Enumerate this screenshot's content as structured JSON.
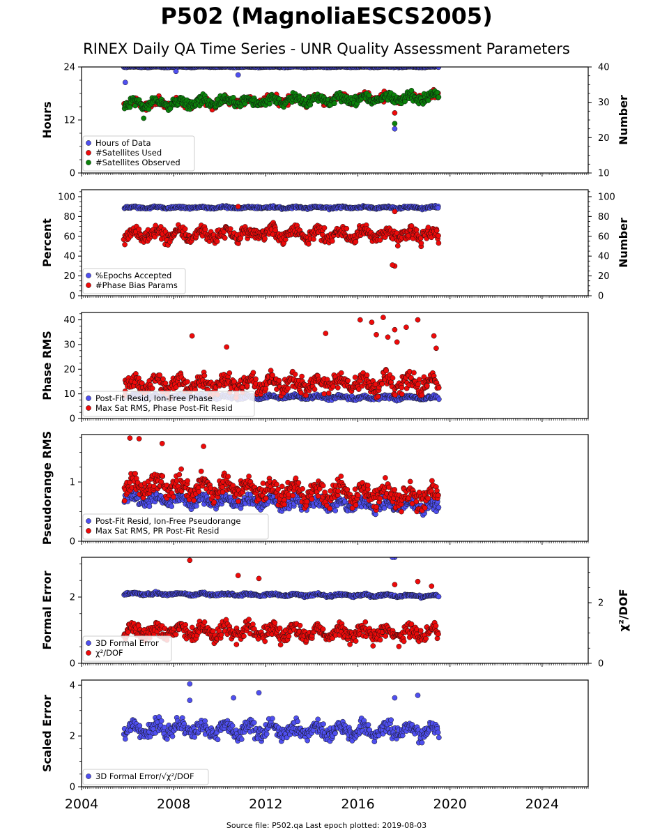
{
  "header": {
    "title": "P502 (MagnoliaESCS2005)",
    "subtitle": "RINEX Daily QA Time Series - UNR Quality Assessment Parameters"
  },
  "footer": {
    "text": "Source file: P502.qa Last epoch plotted: 2019-08-03"
  },
  "colors": {
    "blue": "#4f4ff0",
    "red": "#ee0a0a",
    "green": "#0a820a",
    "dark_band": "#141a4a"
  },
  "chart_data": [
    {
      "type": "scatter",
      "ylabel": "Hours",
      "y2label": "Number",
      "xlim": [
        2004,
        2026
      ],
      "ylim": [
        0,
        24
      ],
      "y2lim": [
        10,
        40
      ],
      "yticks": [
        "0",
        "12",
        "24"
      ],
      "y2ticks": [
        "10",
        "20",
        "30",
        "40"
      ],
      "legend": [
        "Hours of Data",
        "#Satellites Used",
        "#Satellites Observed"
      ],
      "legend_loc": "lower-left",
      "series": [
        {
          "name": "Hours of Data",
          "axis": "left",
          "color": "#4f4ff0",
          "base": 24,
          "spread": 0.1,
          "trend": 0,
          "points": [
            [
              2005.9,
              20.5
            ],
            [
              2008.1,
              23
            ],
            [
              2010.8,
              22.2
            ],
            [
              2017.6,
              10
            ]
          ]
        },
        {
          "name": "#Satellites Used",
          "axis": "right",
          "color": "#ee0a0a",
          "base": 29.5,
          "spread": 1.3,
          "trend": 0.15,
          "points": [
            [
              2009.2,
              30
            ],
            [
              2017.6,
              27
            ]
          ]
        },
        {
          "name": "#Satellites Observed",
          "axis": "right",
          "color": "#0a820a",
          "base": 29.5,
          "spread": 1.3,
          "trend": 0.15,
          "points": [
            [
              2006.7,
              25.5
            ],
            [
              2017.6,
              24
            ]
          ]
        }
      ]
    },
    {
      "type": "scatter",
      "ylabel": "Percent",
      "y2label": "Number",
      "xlim": [
        2004,
        2026
      ],
      "ylim": [
        0,
        107
      ],
      "y2lim": [
        0,
        107
      ],
      "yticks": [
        "0",
        "20",
        "40",
        "60",
        "80",
        "100"
      ],
      "y2ticks": [
        "0",
        "20",
        "40",
        "60",
        "80",
        "100"
      ],
      "legend": [
        "%Epochs Accepted",
        "#Phase Bias Params"
      ],
      "legend_loc": "lower-left",
      "series": [
        {
          "name": "%Epochs Accepted",
          "axis": "left",
          "color": "#4f4ff0",
          "base": 89,
          "spread": 1.2,
          "trend": 0,
          "points": []
        },
        {
          "name": "#Phase Bias Params",
          "axis": "right",
          "color": "#ee0a0a",
          "base": 62,
          "spread": 7,
          "trend": 0,
          "points": [
            [
              2010.8,
              90
            ],
            [
              2017.6,
              30
            ],
            [
              2017.5,
              31
            ],
            [
              2017.6,
              85
            ]
          ]
        }
      ]
    },
    {
      "type": "scatter",
      "ylabel": "Phase RMS",
      "xlim": [
        2004,
        2026
      ],
      "ylim": [
        0,
        43
      ],
      "yticks": [
        "0",
        "10",
        "20",
        "30",
        "40"
      ],
      "legend": [
        "Post-Fit Resid, Ion-Free Phase",
        "Max Sat RMS, Phase Post-Fit Resid"
      ],
      "legend_loc": "lower-left",
      "series": [
        {
          "name": "Post-Fit Resid, Ion-Free Phase",
          "axis": "left",
          "color": "#4f4ff0",
          "base": 9,
          "spread": 0.8,
          "trend": -0.05,
          "points": []
        },
        {
          "name": "Max Sat RMS, Phase Post-Fit Resid",
          "axis": "left",
          "color": "#ee0a0a",
          "base": 14,
          "spread": 3.5,
          "trend": 0,
          "points": [
            [
              2008.8,
              33.5
            ],
            [
              2010.3,
              29
            ],
            [
              2014.6,
              34.5
            ],
            [
              2016.1,
              40
            ],
            [
              2016.6,
              39
            ],
            [
              2016.8,
              34
            ],
            [
              2017.1,
              41
            ],
            [
              2017.3,
              33
            ],
            [
              2017.6,
              36
            ],
            [
              2017.7,
              31
            ],
            [
              2018.1,
              37
            ],
            [
              2018.6,
              40
            ],
            [
              2019.3,
              33.5
            ],
            [
              2019.4,
              28.5
            ]
          ]
        }
      ]
    },
    {
      "type": "scatter",
      "ylabel": "Pseudorange RMS",
      "xlim": [
        2004,
        2026
      ],
      "ylim": [
        0,
        1.8
      ],
      "yticks": [
        "0",
        "1"
      ],
      "legend": [
        "Post-Fit Resid, Ion-Free Pseudorange",
        "Max Sat RMS, PR Post-Fit Resid"
      ],
      "legend_loc": "lower-left",
      "series": [
        {
          "name": "Post-Fit Resid, Ion-Free Pseudorange",
          "axis": "left",
          "color": "#4f4ff0",
          "base": 0.72,
          "spread": 0.1,
          "trend": -0.01,
          "points": []
        },
        {
          "name": "Max Sat RMS, PR Post-Fit Resid",
          "axis": "left",
          "color": "#ee0a0a",
          "base": 0.95,
          "spread": 0.18,
          "trend": -0.015,
          "points": [
            [
              2006.1,
              1.74
            ],
            [
              2006.5,
              1.73
            ],
            [
              2007.5,
              1.65
            ],
            [
              2009.3,
              1.6
            ]
          ]
        }
      ]
    },
    {
      "type": "scatter",
      "ylabel": "Formal Error",
      "y2label": "χ²/DOF",
      "xlim": [
        2004,
        2026
      ],
      "ylim": [
        0,
        3.2
      ],
      "y2lim": [
        0,
        3.5
      ],
      "yticks": [
        "0",
        "2"
      ],
      "y2ticks": [
        "0",
        "2"
      ],
      "legend": [
        "3D Formal Error",
        "χ²/DOF"
      ],
      "legend_loc": "lower-left",
      "series": [
        {
          "name": "3D Formal Error",
          "axis": "left",
          "color": "#4f4ff0",
          "base": 2.1,
          "spread": 0.04,
          "trend": -0.005,
          "points": [
            [
              2017.6,
              3.2
            ],
            [
              2017.5,
              3.2
            ]
          ]
        },
        {
          "name": "χ²/DOF",
          "axis": "right",
          "color": "#ee0a0a",
          "base": 1.1,
          "spread": 0.25,
          "trend": -0.01,
          "points": [
            [
              2008.7,
              3.4
            ],
            [
              2010.8,
              2.9
            ],
            [
              2011.7,
              2.8
            ],
            [
              2017.6,
              2.6
            ],
            [
              2018.6,
              2.7
            ],
            [
              2019.2,
              2.55
            ]
          ]
        }
      ]
    },
    {
      "type": "scatter",
      "ylabel": "Scaled Error",
      "xlim": [
        2004,
        2026
      ],
      "ylim": [
        0,
        4.2
      ],
      "yticks": [
        "0",
        "2",
        "4"
      ],
      "xticks": [
        "2004",
        "2008",
        "2012",
        "2016",
        "2020",
        "2024"
      ],
      "legend": [
        "3D Formal Error/√χ²/DOF"
      ],
      "legend_loc": "lower-left",
      "series": [
        {
          "name": "3D Formal Error/√χ²/DOF",
          "axis": "left",
          "color": "#4f4ff0",
          "base": 2.3,
          "spread": 0.3,
          "trend": -0.01,
          "points": [
            [
              2008.7,
              4.05
            ],
            [
              2008.7,
              3.4
            ],
            [
              2010.6,
              3.5
            ],
            [
              2011.7,
              3.7
            ],
            [
              2017.6,
              3.5
            ],
            [
              2018.6,
              3.6
            ]
          ]
        }
      ]
    }
  ]
}
